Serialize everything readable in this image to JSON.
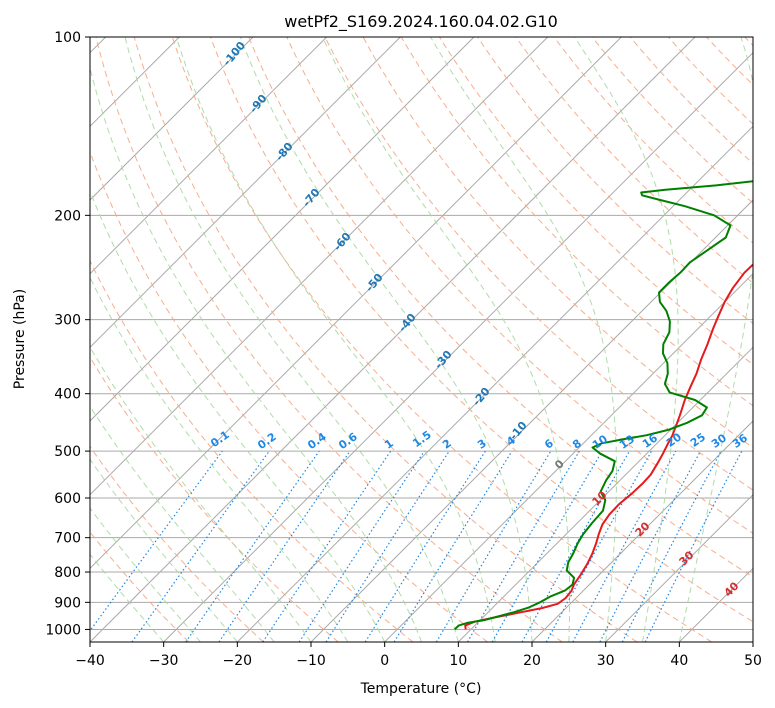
{
  "chart_data": {
    "type": "line",
    "title": "wetPf2_S169.2024.160.04.02.G10",
    "xlabel": "Temperature (°C)",
    "ylabel": "Pressure (hPa)",
    "xlim": [
      -40,
      50
    ],
    "ylim": [
      1050,
      100
    ],
    "y_scale": "log",
    "grid": true,
    "x_ticks": [
      -40,
      -30,
      -20,
      -10,
      0,
      10,
      20,
      30,
      40,
      50
    ],
    "x_tick_labels": [
      "−40",
      "−30",
      "−20",
      "−10",
      "0",
      "10",
      "20",
      "30",
      "40",
      "50"
    ],
    "y_ticks": [
      1000,
      900,
      800,
      700,
      600,
      500,
      400,
      300,
      200,
      100
    ],
    "y_tick_labels": [
      "1000",
      "900",
      "800",
      "700",
      "600",
      "500",
      "400",
      "300",
      "200",
      "100"
    ],
    "colors": {
      "temperature": "#e41a1c",
      "dewpoint": "#008000",
      "isotherm": "#aaaaaa",
      "dry_adiabat": "#f4a582",
      "moist_adiabat": "#a6d8a0",
      "mixing_ratio": "#1e88e5",
      "label_moist": "#1f77b4",
      "label_dry": "#d32f2f"
    },
    "series": [
      {
        "key": "temperature",
        "points": [
          [
            9.3,
            1000
          ],
          [
            8.7,
            985
          ],
          [
            9.5,
            970
          ],
          [
            11.5,
            955
          ],
          [
            14.5,
            935
          ],
          [
            16.8,
            920
          ],
          [
            18.3,
            905
          ],
          [
            18.6,
            885
          ],
          [
            18.4,
            860
          ],
          [
            17.9,
            840
          ],
          [
            17.5,
            810
          ],
          [
            16.9,
            775
          ],
          [
            16.2,
            745
          ],
          [
            15.3,
            715
          ],
          [
            14.4,
            690
          ],
          [
            13.6,
            665
          ],
          [
            13.2,
            640
          ],
          [
            13.1,
            615
          ],
          [
            13.4,
            590
          ],
          [
            13.5,
            568
          ],
          [
            13.4,
            548
          ],
          [
            12.8,
            525
          ],
          [
            12.2,
            505
          ],
          [
            11.5,
            485
          ],
          [
            11.0,
            470
          ],
          [
            10.3,
            455
          ],
          [
            9.3,
            435
          ],
          [
            7.9,
            410
          ],
          [
            6.9,
            390
          ],
          [
            5.9,
            370
          ],
          [
            4.6,
            350
          ],
          [
            3.4,
            330
          ],
          [
            2.0,
            310
          ],
          [
            1.0,
            295
          ],
          [
            0.0,
            280
          ],
          [
            -0.8,
            265
          ],
          [
            -1.3,
            250
          ],
          [
            -1.2,
            238
          ],
          [
            -0.5,
            228
          ],
          [
            1.5,
            217
          ],
          [
            4.2,
            207
          ],
          [
            6.5,
            199
          ],
          [
            8.2,
            190
          ],
          [
            9.9,
            181
          ],
          [
            12.5,
            172
          ],
          [
            14.7,
            164
          ],
          [
            16.2,
            157
          ],
          [
            17.5,
            150
          ],
          [
            19.2,
            142
          ],
          [
            21.6,
            133
          ],
          [
            23.3,
            125
          ],
          [
            25.1,
            117
          ],
          [
            26.9,
            111
          ],
          [
            28.4,
            106
          ],
          [
            29.4,
            102
          ],
          [
            29.8,
            100
          ]
        ]
      },
      {
        "key": "dewpoint",
        "points": [
          [
            7.8,
            1000
          ],
          [
            7.8,
            985
          ],
          [
            8.6,
            975
          ],
          [
            10.5,
            965
          ],
          [
            12.0,
            950
          ],
          [
            13.5,
            935
          ],
          [
            14.9,
            918
          ],
          [
            15.7,
            900
          ],
          [
            16.3,
            880
          ],
          [
            17.5,
            860
          ],
          [
            17.7,
            840
          ],
          [
            17.0,
            818
          ],
          [
            15.0,
            795
          ],
          [
            14.1,
            770
          ],
          [
            13.6,
            745
          ],
          [
            12.8,
            715
          ],
          [
            12.3,
            690
          ],
          [
            12.0,
            660
          ],
          [
            11.8,
            630
          ],
          [
            10.7,
            605
          ],
          [
            8.9,
            585
          ],
          [
            8.1,
            560
          ],
          [
            7.7,
            540
          ],
          [
            6.7,
            520
          ],
          [
            3.7,
            505
          ],
          [
            1.8,
            493
          ],
          [
            2.5,
            485
          ],
          [
            4.7,
            478
          ],
          [
            7.5,
            470
          ],
          [
            9.8,
            460
          ],
          [
            11.3,
            448
          ],
          [
            12.3,
            435
          ],
          [
            11.9,
            422
          ],
          [
            9.3,
            410
          ],
          [
            4.8,
            398
          ],
          [
            3.0,
            385
          ],
          [
            2.0,
            370
          ],
          [
            0.5,
            355
          ],
          [
            -1.4,
            342
          ],
          [
            -2.6,
            330
          ],
          [
            -3.4,
            315
          ],
          [
            -4.8,
            302
          ],
          [
            -6.7,
            290
          ],
          [
            -8.8,
            280
          ],
          [
            -10.2,
            270
          ],
          [
            -10.2,
            260
          ],
          [
            -10.0,
            250
          ],
          [
            -10.1,
            240
          ],
          [
            -9.3,
            228
          ],
          [
            -8.6,
            218
          ],
          [
            -9.6,
            208
          ],
          [
            -13.2,
            200
          ],
          [
            -18.4,
            193
          ],
          [
            -23.0,
            188
          ],
          [
            -25.7,
            185
          ],
          [
            -26.2,
            183
          ],
          [
            -23.3,
            181
          ],
          [
            -17.0,
            178
          ],
          [
            -12.3,
            175
          ],
          [
            -10.2,
            170
          ],
          [
            -11.0,
            163
          ],
          [
            -11.9,
            155
          ],
          [
            -11.7,
            148
          ],
          [
            -11.6,
            143
          ],
          [
            -10.4,
            140
          ],
          [
            -7.5,
            136
          ],
          [
            -5.2,
            130
          ],
          [
            -4.6,
            123
          ],
          [
            -4.4,
            117
          ],
          [
            -3.7,
            111
          ],
          [
            -2.0,
            105
          ],
          [
            -0.1,
            100
          ]
        ]
      }
    ],
    "annotations": {
      "mixing_ratio_labels": [
        "0.1",
        "0.2",
        "0.4",
        "0.6",
        "1",
        "1.5",
        "2",
        "3",
        "4",
        "6",
        "8",
        "10",
        "13",
        "16",
        "20",
        "25",
        "30",
        "36"
      ],
      "moist_adiabat_labels": [
        "-100",
        "-90",
        "-80",
        "-70",
        "-60",
        "-50",
        "-40",
        "-30",
        "-20",
        "-10"
      ],
      "zero_label": "0",
      "dry_adiabat_labels": [
        "10",
        "20",
        "30",
        "40"
      ]
    }
  }
}
